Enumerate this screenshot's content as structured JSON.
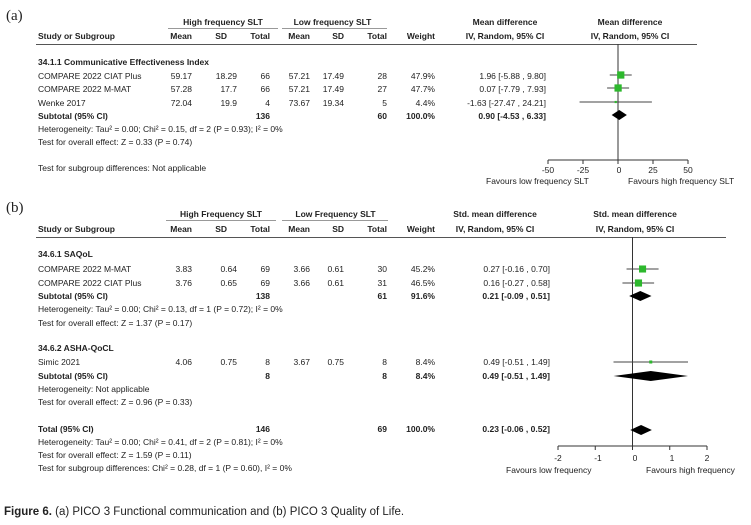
{
  "panels": [
    {
      "label": "(a)",
      "group_headers": [
        "High frequency SLT",
        "Low frequency SLT",
        "Mean difference",
        "Mean difference"
      ],
      "columns": [
        "Study or Subgroup",
        "Mean",
        "SD",
        "Total",
        "Mean",
        "SD",
        "Total",
        "Weight",
        "IV, Random, 95% CI",
        "IV, Random, 95% CI"
      ],
      "subgroups": [
        {
          "name": "34.1.1 Communicative Effectiveness Index",
          "studies": [
            {
              "name": "COMPARE 2022 CIAT Plus",
              "m1": "59.17",
              "sd1": "18.29",
              "n1": "66",
              "m2": "57.21",
              "sd2": "17.49",
              "n2": "28",
              "weight": "47.9%",
              "ci": "1.96 [-5.88 , 9.80]"
            },
            {
              "name": "COMPARE 2022 M-MAT",
              "m1": "57.28",
              "sd1": "17.7",
              "n1": "66",
              "m2": "57.21",
              "sd2": "17.49",
              "n2": "27",
              "weight": "47.7%",
              "ci": "0.07 [-7.79 , 7.93]"
            },
            {
              "name": "Wenke 2017",
              "m1": "72.04",
              "sd1": "19.9",
              "n1": "4",
              "m2": "73.67",
              "sd2": "19.34",
              "n2": "5",
              "weight": "4.4%",
              "ci": "-1.63 [-27.47 , 24.21]"
            }
          ],
          "subtotal": {
            "label": "Subtotal (95% CI)",
            "n1": "136",
            "n2": "60",
            "weight": "100.0%",
            "ci": "0.90 [-4.53 , 6.33]"
          },
          "heterogeneity": "Heterogeneity: Tau² = 0.00; Chi² = 0.15, df = 2 (P = 0.93); I² = 0%",
          "overall_effect": "Test for overall effect: Z = 0.33 (P = 0.74)"
        }
      ],
      "subgroup_diff": "Test for subgroup differences: Not applicable",
      "axis_ticks": [
        "-50",
        "-25",
        "0",
        "25",
        "50"
      ],
      "favours_left": "Favours low frequency SLT",
      "favours_right": "Favours high frequency SLT"
    },
    {
      "label": "(b)",
      "group_headers": [
        "High Frequency SLT",
        "Low Frequency SLT",
        "Std. mean difference",
        "Std. mean difference"
      ],
      "columns": [
        "Study or Subgroup",
        "Mean",
        "SD",
        "Total",
        "Mean",
        "SD",
        "Total",
        "Weight",
        "IV, Random, 95% CI",
        "IV, Random, 95% CI"
      ],
      "subgroups": [
        {
          "name": "34.6.1 SAQoL",
          "studies": [
            {
              "name": "COMPARE 2022 M-MAT",
              "m1": "3.83",
              "sd1": "0.64",
              "n1": "69",
              "m2": "3.66",
              "sd2": "0.61",
              "n2": "30",
              "weight": "45.2%",
              "ci": "0.27 [-0.16 , 0.70]"
            },
            {
              "name": "COMPARE 2022 CIAT Plus",
              "m1": "3.76",
              "sd1": "0.65",
              "n1": "69",
              "m2": "3.66",
              "sd2": "0.61",
              "n2": "31",
              "weight": "46.5%",
              "ci": "0.16 [-0.27 , 0.58]"
            }
          ],
          "subtotal": {
            "label": "Subtotal (95% CI)",
            "n1": "138",
            "n2": "61",
            "weight": "91.6%",
            "ci": "0.21 [-0.09 , 0.51]"
          },
          "heterogeneity": "Heterogeneity: Tau² = 0.00; Chi² = 0.13, df = 1 (P = 0.72); I² = 0%",
          "overall_effect": "Test for overall effect: Z = 1.37 (P = 0.17)"
        },
        {
          "name": "34.6.2 ASHA-QoCL",
          "studies": [
            {
              "name": "Simic 2021",
              "m1": "4.06",
              "sd1": "0.75",
              "n1": "8",
              "m2": "3.67",
              "sd2": "0.75",
              "n2": "8",
              "weight": "8.4%",
              "ci": "0.49 [-0.51 , 1.49]"
            }
          ],
          "subtotal": {
            "label": "Subtotal (95% CI)",
            "n1": "8",
            "n2": "8",
            "weight": "8.4%",
            "ci": "0.49 [-0.51 , 1.49]"
          },
          "heterogeneity": "Heterogeneity: Not applicable",
          "overall_effect": "Test for overall effect: Z = 0.96 (P = 0.33)"
        }
      ],
      "total": {
        "label": "Total (95% CI)",
        "n1": "146",
        "n2": "69",
        "weight": "100.0%",
        "ci": "0.23 [-0.06 , 0.52]"
      },
      "total_heterogeneity": "Heterogeneity: Tau² = 0.00; Chi² = 0.41, df = 2 (P = 0.81); I² = 0%",
      "total_overall_effect": "Test for overall effect: Z = 1.59 (P = 0.11)",
      "subgroup_diff": "Test for subgroup differences: Chi² = 0.28, df = 1 (P = 0.60), I² = 0%",
      "axis_ticks": [
        "-2",
        "-1",
        "0",
        "1",
        "2"
      ],
      "favours_left": "Favours low frequency",
      "favours_right": "Favours high frequency"
    }
  ],
  "caption": {
    "label": "Figure 6.",
    "text": "(a) PICO 3 Functional communication and (b) PICO 3 Quality of Life."
  },
  "chart_data": [
    {
      "type": "forest",
      "title": "",
      "xlabel": "",
      "xlim": [
        -50,
        50
      ],
      "x_ticks": [
        -50,
        -25,
        0,
        25,
        50
      ],
      "studies": [
        {
          "name": "COMPARE 2022 CIAT Plus",
          "estimate": 1.96,
          "lower": -5.88,
          "upper": 9.8,
          "weight": 47.9
        },
        {
          "name": "COMPARE 2022 M-MAT",
          "estimate": 0.07,
          "lower": -7.79,
          "upper": 7.93,
          "weight": 47.7
        },
        {
          "name": "Wenke 2017",
          "estimate": -1.63,
          "lower": -27.47,
          "upper": 24.21,
          "weight": 4.4
        }
      ],
      "pooled": [
        {
          "name": "Subtotal (95% CI)",
          "estimate": 0.9,
          "lower": -4.53,
          "upper": 6.33
        }
      ]
    },
    {
      "type": "forest",
      "title": "",
      "xlabel": "",
      "xlim": [
        -2,
        2
      ],
      "x_ticks": [
        -2,
        -1,
        0,
        1,
        2
      ],
      "studies": [
        {
          "name": "COMPARE 2022 M-MAT",
          "estimate": 0.27,
          "lower": -0.16,
          "upper": 0.7,
          "weight": 45.2
        },
        {
          "name": "COMPARE 2022 CIAT Plus",
          "estimate": 0.16,
          "lower": -0.27,
          "upper": 0.58,
          "weight": 46.5
        },
        {
          "name": "Simic 2021",
          "estimate": 0.49,
          "lower": -0.51,
          "upper": 1.49,
          "weight": 8.4
        }
      ],
      "pooled": [
        {
          "name": "Subtotal (95% CI)",
          "estimate": 0.21,
          "lower": -0.09,
          "upper": 0.51
        },
        {
          "name": "Subtotal (95% CI)",
          "estimate": 0.49,
          "lower": -0.51,
          "upper": 1.49
        },
        {
          "name": "Total (95% CI)",
          "estimate": 0.23,
          "lower": -0.06,
          "upper": 0.52
        }
      ]
    }
  ]
}
